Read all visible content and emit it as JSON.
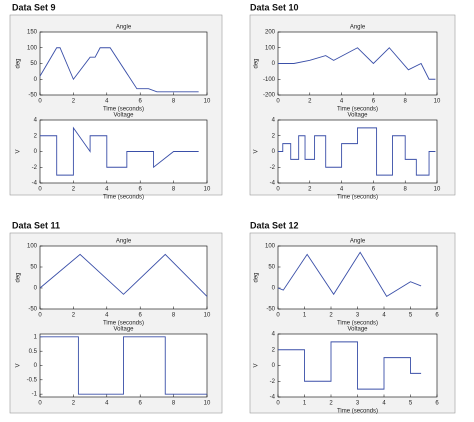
{
  "panel_titles": [
    "Data Set 9",
    "Data Set 10",
    "Data Set 11",
    "Data Set 12"
  ],
  "chart_data": [
    {
      "type": "line",
      "title": "Angle",
      "ylabel": "deg",
      "xlabel": "Time (seconds)",
      "color": "#3a4fa8",
      "x": [
        0,
        1,
        1.2,
        2,
        3,
        3.3,
        3.6,
        4.2,
        5.8,
        6.5,
        7,
        9.5
      ],
      "values": [
        10,
        100,
        100,
        0,
        70,
        70,
        100,
        100,
        -30,
        -30,
        -40,
        -40
      ],
      "xlim": [
        0,
        10
      ],
      "ylim": [
        -50,
        150
      ],
      "xticks": [
        0,
        2,
        4,
        6,
        8,
        10
      ],
      "yticks": [
        -50,
        0,
        50,
        100,
        150
      ]
    },
    {
      "type": "line",
      "title": "Voltage",
      "ylabel": "V",
      "xlabel": "Time (seconds)",
      "color": "#3a4fa8",
      "x": [
        0,
        1,
        1,
        2,
        2,
        3,
        3,
        4,
        4,
        5.2,
        5.2,
        6.8,
        6.8,
        8,
        9.5
      ],
      "values": [
        2,
        2,
        -3,
        -3,
        3,
        0,
        2,
        2,
        -2,
        -2,
        0,
        0,
        -2,
        0,
        0
      ],
      "xlim": [
        0,
        10
      ],
      "ylim": [
        -4,
        4
      ],
      "xticks": [
        0,
        2,
        4,
        6,
        8,
        10
      ],
      "yticks": [
        -4,
        -2,
        0,
        2,
        4
      ]
    },
    {
      "type": "line",
      "title": "Angle",
      "ylabel": "deg",
      "xlabel": "Time (seconds)",
      "color": "#3a4fa8",
      "x": [
        0,
        1,
        2,
        3,
        3.5,
        5,
        6,
        7,
        8.2,
        9,
        9.5,
        9.9
      ],
      "values": [
        0,
        0,
        20,
        50,
        20,
        100,
        0,
        100,
        -40,
        0,
        -100,
        -100
      ],
      "xlim": [
        0,
        10
      ],
      "ylim": [
        -200,
        200
      ],
      "xticks": [
        0,
        2,
        4,
        6,
        8,
        10
      ],
      "yticks": [
        -200,
        -100,
        0,
        100,
        200
      ]
    },
    {
      "type": "line",
      "title": "Voltage",
      "ylabel": "V",
      "xlabel": "Time (seconds)",
      "color": "#3a4fa8",
      "x": [
        0,
        0.3,
        0.3,
        0.8,
        0.8,
        1.3,
        1.3,
        1.7,
        1.7,
        2.3,
        2.3,
        3,
        3,
        4,
        4,
        5,
        5,
        6.2,
        6.2,
        7.2,
        7.2,
        8,
        8,
        8.7,
        8.7,
        9.5,
        9.5,
        9.9
      ],
      "values": [
        0,
        0,
        1,
        1,
        -1,
        -1,
        2,
        2,
        -1,
        -1,
        2,
        2,
        -2,
        -2,
        1,
        1,
        3,
        3,
        -3,
        -3,
        2,
        2,
        -1,
        -1,
        -3,
        -3,
        0,
        0
      ],
      "xlim": [
        0,
        10
      ],
      "ylim": [
        -4,
        4
      ],
      "xticks": [
        0,
        2,
        4,
        6,
        8,
        10
      ],
      "yticks": [
        -4,
        -2,
        0,
        2,
        4
      ]
    },
    {
      "type": "line",
      "title": "Angle",
      "ylabel": "deg",
      "xlabel": "Time (seconds)",
      "color": "#3a4fa8",
      "x": [
        0,
        2.4,
        5,
        7.5,
        10
      ],
      "values": [
        0,
        80,
        -15,
        80,
        -20
      ],
      "xlim": [
        0,
        10
      ],
      "ylim": [
        -50,
        100
      ],
      "xticks": [
        0,
        2,
        4,
        6,
        8,
        10
      ],
      "yticks": [
        -50,
        0,
        50,
        100
      ]
    },
    {
      "type": "line",
      "title": "Voltage",
      "ylabel": "V",
      "color": "#3a4fa8",
      "x": [
        0,
        2.3,
        2.3,
        5,
        5,
        7.5,
        7.5,
        10
      ],
      "values": [
        1,
        1,
        -1,
        -1,
        1,
        1,
        -1,
        -1
      ],
      "xlim": [
        0,
        10
      ],
      "ylim": [
        -1.1,
        1.1
      ],
      "xticks": [
        0,
        2,
        4,
        6,
        8,
        10
      ],
      "yticks": [
        -1,
        -0.5,
        0,
        0.5,
        1
      ]
    },
    {
      "type": "line",
      "title": "Angle",
      "ylabel": "deg",
      "xlabel": "Time (seconds)",
      "color": "#3a4fa8",
      "x": [
        0,
        0.2,
        1.1,
        2.1,
        3.1,
        4.1,
        5,
        5.4
      ],
      "values": [
        0,
        -5,
        80,
        -15,
        85,
        -20,
        15,
        5
      ],
      "xlim": [
        0,
        6
      ],
      "ylim": [
        -50,
        100
      ],
      "xticks": [
        0,
        1,
        2,
        3,
        4,
        5,
        6
      ],
      "yticks": [
        -50,
        0,
        50,
        100
      ]
    },
    {
      "type": "line",
      "title": "Voltage",
      "ylabel": "V",
      "xlabel": "Time (seconds)",
      "color": "#3a4fa8",
      "x": [
        0,
        1,
        1,
        2,
        2,
        3,
        3,
        4,
        4,
        5,
        5,
        5.4
      ],
      "values": [
        2,
        2,
        -2,
        -2,
        3,
        3,
        -3,
        -3,
        1,
        1,
        -1,
        -1
      ],
      "xlim": [
        0,
        6
      ],
      "ylim": [
        -4,
        4
      ],
      "xticks": [
        0,
        1,
        2,
        3,
        4,
        5,
        6
      ],
      "yticks": [
        -4,
        -2,
        0,
        2,
        4
      ]
    }
  ]
}
